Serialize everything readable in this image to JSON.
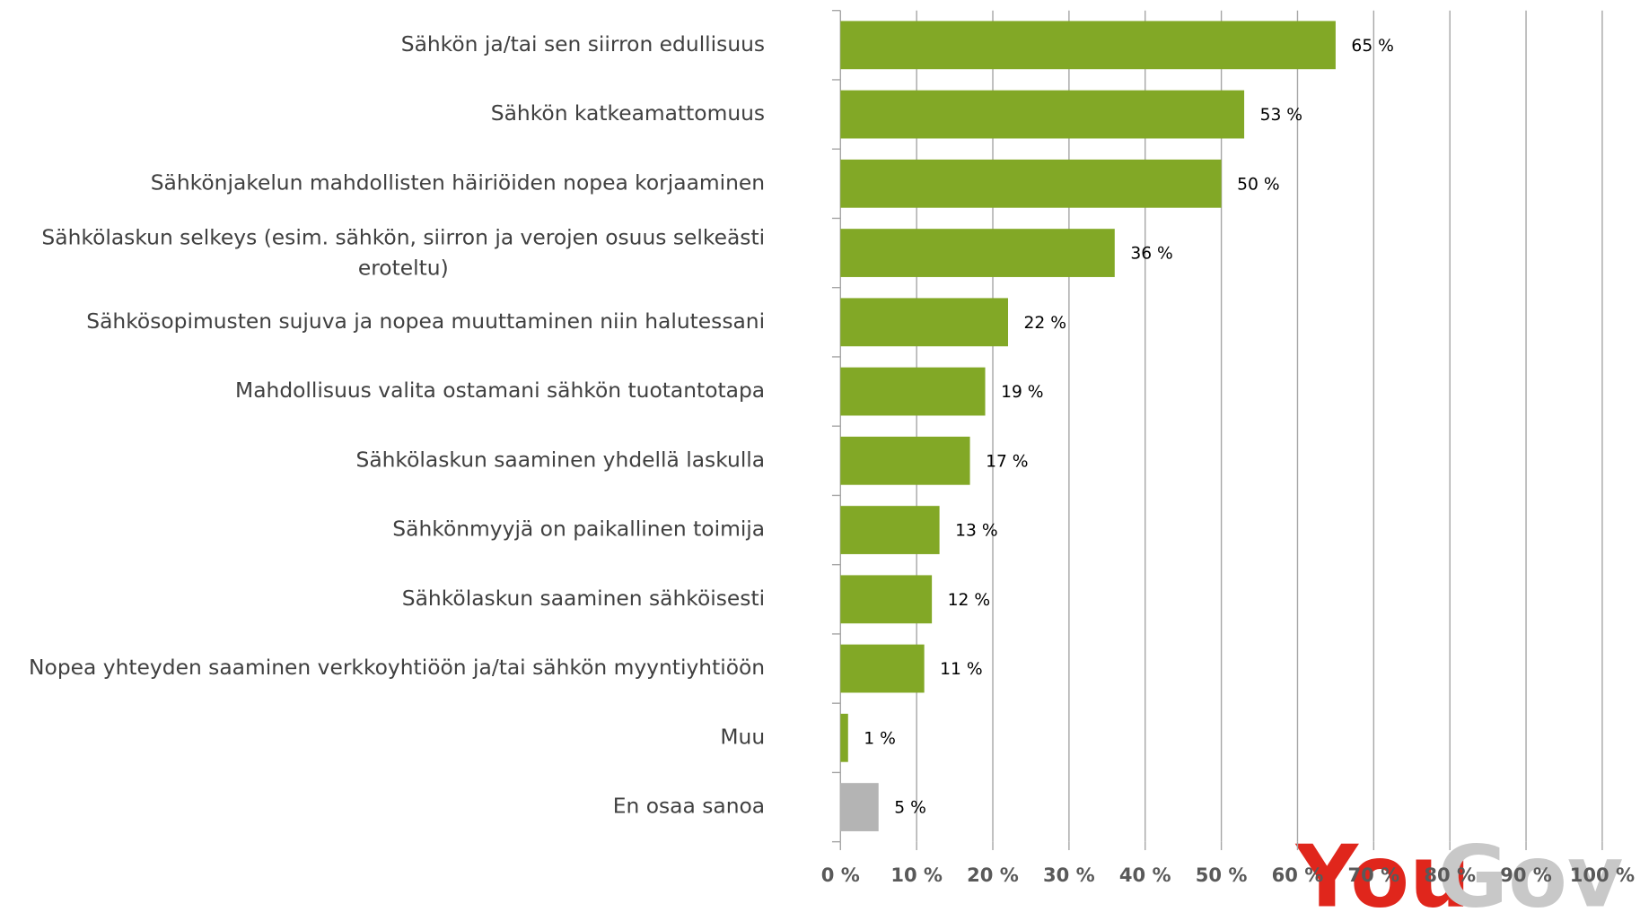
{
  "chart_data": {
    "type": "barh",
    "categories": [
      "Sähkön ja/tai sen siirron edullisuus",
      "Sähkön katkeamattomuus",
      "Sähkönjakelun mahdollisten häiriöiden nopea korjaaminen",
      "Sähkölaskun selkeys (esim. sähkön, siirron ja verojen osuus selkeästi\neroteltu)",
      "Sähkösopimusten sujuva ja nopea muuttaminen niin halutessani",
      "Mahdollisuus valita ostamani sähkön tuotantotapa",
      "Sähkölaskun saaminen yhdellä laskulla",
      "Sähkönmyyjä on paikallinen toimija",
      "Sähkölaskun saaminen sähköisesti",
      "Nopea yhteyden saaminen verkkoyhtiöön ja/tai sähkön myyntiyhtiöön",
      "Muu",
      "En osaa sanoa"
    ],
    "values": [
      65,
      53,
      50,
      36,
      22,
      19,
      17,
      13,
      12,
      11,
      1,
      5
    ],
    "value_labels": [
      "65 %",
      "53 %",
      "50 %",
      "36 %",
      "22 %",
      "19 %",
      "17 %",
      "13 %",
      "12 %",
      "11 %",
      "1 %",
      "5 %"
    ],
    "colors": [
      "#82a826",
      "#82a826",
      "#82a826",
      "#82a826",
      "#82a826",
      "#82a826",
      "#82a826",
      "#82a826",
      "#82a826",
      "#82a826",
      "#82a826",
      "#b4b4b4"
    ],
    "xlim": [
      0,
      100
    ],
    "xticks": [
      {
        "value": 0,
        "label": "0 %"
      },
      {
        "value": 10,
        "label": "10 %"
      },
      {
        "value": 20,
        "label": "20 %"
      },
      {
        "value": 30,
        "label": "30 %"
      },
      {
        "value": 40,
        "label": "40 %"
      },
      {
        "value": 50,
        "label": "50 %"
      },
      {
        "value": 60,
        "label": "60 %"
      },
      {
        "value": 70,
        "label": "70 %"
      },
      {
        "value": 80,
        "label": "80 %"
      },
      {
        "value": 90,
        "label": "90 %"
      },
      {
        "value": 100,
        "label": "100 %"
      }
    ],
    "grid": true,
    "logo": [
      "You",
      "Gov"
    ]
  }
}
